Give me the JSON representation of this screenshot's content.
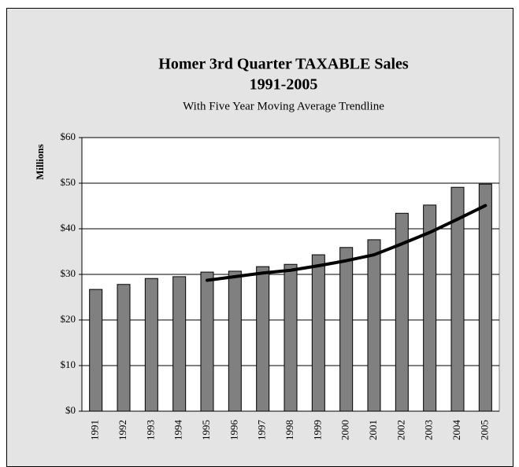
{
  "chart_data": {
    "type": "bar",
    "title": "Homer 3rd Quarter TAXABLE Sales",
    "title_line2": "1991-2005",
    "subtitle": "With Five Year Moving Average Trendline",
    "y_label": "Millions",
    "categories": [
      "1991",
      "1992",
      "1993",
      "1994",
      "1995",
      "1996",
      "1997",
      "1998",
      "1999",
      "2000",
      "2001",
      "2002",
      "2003",
      "2004",
      "2005"
    ],
    "series": [
      {
        "type": "bar",
        "color": "#808080",
        "values": [
          26.7,
          27.8,
          29.1,
          29.5,
          30.5,
          30.7,
          31.7,
          32.2,
          34.3,
          35.9,
          37.6,
          43.4,
          45.2,
          49.1,
          49.8
        ]
      },
      {
        "type": "line",
        "color": "#000000",
        "values": [
          null,
          null,
          null,
          null,
          28.7,
          29.5,
          30.3,
          30.9,
          31.9,
          33.0,
          34.3,
          36.7,
          39.2,
          42.1,
          45.1
        ]
      }
    ],
    "ylim": [
      0,
      60
    ],
    "yticks": [
      {
        "value": 0,
        "label": "$0"
      },
      {
        "value": 10,
        "label": "$10"
      },
      {
        "value": 20,
        "label": "$20"
      },
      {
        "value": 30,
        "label": "$30"
      },
      {
        "value": 40,
        "label": "$40"
      },
      {
        "value": 50,
        "label": "$50"
      },
      {
        "value": 60,
        "label": "$60"
      }
    ],
    "grid": true
  }
}
